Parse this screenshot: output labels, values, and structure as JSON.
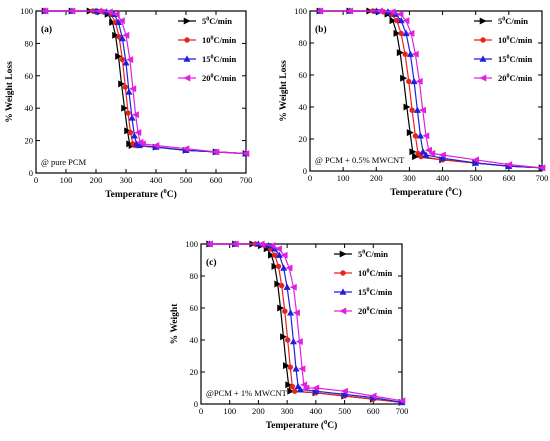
{
  "chart_data": [
    {
      "type": "line",
      "panel_label": "(a)",
      "annotation": "@ pure PCM",
      "xlabel_main": "Temperature (",
      "xlabel_sup": "0",
      "xlabel_tail": "C)",
      "ylabel": "% Weight Loss",
      "xlim": [
        0,
        700
      ],
      "ylim": [
        0,
        100
      ],
      "xticks": [
        0,
        100,
        200,
        300,
        400,
        500,
        600,
        700
      ],
      "yticks": [
        0,
        20,
        40,
        60,
        80,
        100
      ],
      "legend_position": "top-right",
      "series": [
        {
          "name": "5",
          "unit": "C/min",
          "color": "#000000",
          "marker": "triangle-right",
          "points": [
            [
              30,
              100
            ],
            [
              120,
              100
            ],
            [
              180,
              100
            ],
            [
              215,
              99.5
            ],
            [
              240,
              98
            ],
            [
              255,
              93
            ],
            [
              265,
              85
            ],
            [
              275,
              72
            ],
            [
              285,
              55
            ],
            [
              295,
              40
            ],
            [
              305,
              26
            ],
            [
              312,
              18
            ],
            [
              320,
              17
            ],
            [
              400,
              16
            ],
            [
              500,
              14
            ],
            [
              600,
              13
            ],
            [
              700,
              12
            ]
          ]
        },
        {
          "name": "10",
          "unit": "C/min",
          "color": "#e8231c",
          "marker": "circle",
          "points": [
            [
              30,
              100
            ],
            [
              120,
              100
            ],
            [
              190,
              100
            ],
            [
              225,
              99.5
            ],
            [
              250,
              98
            ],
            [
              265,
              93
            ],
            [
              277,
              84
            ],
            [
              288,
              70
            ],
            [
              298,
              53
            ],
            [
              307,
              37
            ],
            [
              315,
              25
            ],
            [
              323,
              18
            ],
            [
              330,
              17
            ],
            [
              400,
              16
            ],
            [
              500,
              14
            ],
            [
              600,
              13
            ],
            [
              700,
              12
            ]
          ]
        },
        {
          "name": "15",
          "unit": "C/min",
          "color": "#1f1fe0",
          "marker": "triangle-up",
          "points": [
            [
              30,
              100
            ],
            [
              120,
              100
            ],
            [
              200,
              100
            ],
            [
              235,
              99.5
            ],
            [
              260,
              98
            ],
            [
              275,
              93
            ],
            [
              288,
              83
            ],
            [
              300,
              68
            ],
            [
              310,
              50
            ],
            [
              320,
              34
            ],
            [
              328,
              23
            ],
            [
              335,
              18
            ],
            [
              345,
              17
            ],
            [
              400,
              16
            ],
            [
              500,
              14
            ],
            [
              600,
              13
            ],
            [
              700,
              12
            ]
          ]
        },
        {
          "name": "20",
          "unit": "C/min",
          "color": "#e020e0",
          "marker": "triangle-left",
          "points": [
            [
              30,
              100
            ],
            [
              120,
              100
            ],
            [
              210,
              100
            ],
            [
              245,
              99.5
            ],
            [
              268,
              98
            ],
            [
              285,
              94
            ],
            [
              300,
              85
            ],
            [
              313,
              70
            ],
            [
              323,
              52
            ],
            [
              332,
              36
            ],
            [
              340,
              25
            ],
            [
              347,
              19
            ],
            [
              355,
              18
            ],
            [
              400,
              17
            ],
            [
              500,
              15
            ],
            [
              600,
              13
            ],
            [
              700,
              12
            ]
          ]
        }
      ]
    },
    {
      "type": "line",
      "panel_label": "(b)",
      "annotation": "@ PCM + 0.5% MWCNT",
      "xlabel_main": "Temperature (",
      "xlabel_sup": "0",
      "xlabel_tail": "C)",
      "ylabel": "% Weight Loss",
      "xlim": [
        0,
        700
      ],
      "ylim": [
        0,
        100
      ],
      "xticks": [
        0,
        100,
        200,
        300,
        400,
        500,
        600,
        700
      ],
      "yticks": [
        0,
        20,
        40,
        60,
        80,
        100
      ],
      "legend_position": "top-right",
      "series": [
        {
          "name": "5",
          "unit": "C/min",
          "color": "#000000",
          "marker": "triangle-right",
          "points": [
            [
              30,
              100
            ],
            [
              120,
              100
            ],
            [
              180,
              100
            ],
            [
              210,
              99.5
            ],
            [
              235,
              98
            ],
            [
              250,
              94
            ],
            [
              262,
              86
            ],
            [
              272,
              74
            ],
            [
              282,
              58
            ],
            [
              292,
              40
            ],
            [
              302,
              24
            ],
            [
              310,
              12
            ],
            [
              318,
              9
            ],
            [
              400,
              7
            ],
            [
              500,
              5
            ],
            [
              600,
              3
            ],
            [
              700,
              2
            ]
          ]
        },
        {
          "name": "10",
          "unit": "C/min",
          "color": "#e8231c",
          "marker": "circle",
          "points": [
            [
              30,
              100
            ],
            [
              120,
              100
            ],
            [
              190,
              100
            ],
            [
              222,
              99.5
            ],
            [
              246,
              98
            ],
            [
              262,
              94
            ],
            [
              275,
              86
            ],
            [
              287,
              73
            ],
            [
              298,
              56
            ],
            [
              308,
              38
            ],
            [
              318,
              22
            ],
            [
              326,
              11
            ],
            [
              335,
              9
            ],
            [
              400,
              7
            ],
            [
              500,
              5
            ],
            [
              600,
              3
            ],
            [
              700,
              2
            ]
          ]
        },
        {
          "name": "15",
          "unit": "C/min",
          "color": "#1f1fe0",
          "marker": "triangle-up",
          "points": [
            [
              30,
              100
            ],
            [
              120,
              100
            ],
            [
              200,
              100
            ],
            [
              235,
              99.5
            ],
            [
              258,
              98
            ],
            [
              275,
              94
            ],
            [
              290,
              86
            ],
            [
              303,
              73
            ],
            [
              314,
              56
            ],
            [
              324,
              38
            ],
            [
              333,
              22
            ],
            [
              341,
              12
            ],
            [
              350,
              10
            ],
            [
              400,
              8
            ],
            [
              500,
              5
            ],
            [
              600,
              3
            ],
            [
              700,
              2
            ]
          ]
        },
        {
          "name": "20",
          "unit": "C/min",
          "color": "#e020e0",
          "marker": "triangle-left",
          "points": [
            [
              30,
              100
            ],
            [
              120,
              100
            ],
            [
              210,
              100
            ],
            [
              248,
              99.5
            ],
            [
              272,
              98
            ],
            [
              290,
              94
            ],
            [
              305,
              86
            ],
            [
              318,
              73
            ],
            [
              330,
              56
            ],
            [
              340,
              38
            ],
            [
              350,
              22
            ],
            [
              358,
              13
            ],
            [
              368,
              11
            ],
            [
              400,
              10
            ],
            [
              500,
              7
            ],
            [
              600,
              4
            ],
            [
              700,
              2
            ]
          ]
        }
      ]
    },
    {
      "type": "line",
      "panel_label": "(c)",
      "annotation": "@PCM + 1% MWCNT",
      "xlabel_main": "Temperature (",
      "xlabel_sup": "0",
      "xlabel_tail": "C)",
      "ylabel": "% Weight",
      "xlim": [
        0,
        700
      ],
      "ylim": [
        0,
        100
      ],
      "xticks": [
        0,
        100,
        200,
        300,
        400,
        500,
        600,
        700
      ],
      "yticks": [
        0,
        20,
        40,
        60,
        80,
        100
      ],
      "legend_position": "top-right",
      "series": [
        {
          "name": "5",
          "unit": "C/min",
          "color": "#000000",
          "marker": "triangle-right",
          "points": [
            [
              30,
              100
            ],
            [
              120,
              100
            ],
            [
              180,
              100
            ],
            [
              210,
              99
            ],
            [
              230,
              97
            ],
            [
              245,
              93
            ],
            [
              257,
              86
            ],
            [
              267,
              75
            ],
            [
              277,
              60
            ],
            [
              287,
              42
            ],
            [
              297,
              24
            ],
            [
              305,
              12
            ],
            [
              312,
              8
            ],
            [
              400,
              7
            ],
            [
              500,
              5
            ],
            [
              600,
              3
            ],
            [
              700,
              1
            ]
          ]
        },
        {
          "name": "10",
          "unit": "C/min",
          "color": "#e8231c",
          "marker": "circle",
          "points": [
            [
              30,
              100
            ],
            [
              120,
              100
            ],
            [
              190,
              100
            ],
            [
              222,
              99
            ],
            [
              242,
              97
            ],
            [
              257,
              93
            ],
            [
              270,
              86
            ],
            [
              281,
              74
            ],
            [
              292,
              58
            ],
            [
              302,
              40
            ],
            [
              311,
              23
            ],
            [
              318,
              11
            ],
            [
              326,
              8
            ],
            [
              400,
              7
            ],
            [
              500,
              5
            ],
            [
              600,
              3
            ],
            [
              700,
              1
            ]
          ]
        },
        {
          "name": "15",
          "unit": "C/min",
          "color": "#1f1fe0",
          "marker": "triangle-up",
          "points": [
            [
              30,
              100
            ],
            [
              120,
              100
            ],
            [
              200,
              100
            ],
            [
              235,
              99
            ],
            [
              256,
              97
            ],
            [
              273,
              93
            ],
            [
              288,
              85
            ],
            [
              300,
              73
            ],
            [
              312,
              57
            ],
            [
              322,
              39
            ],
            [
              331,
              22
            ],
            [
              338,
              11
            ],
            [
              346,
              9
            ],
            [
              400,
              8
            ],
            [
              500,
              6
            ],
            [
              600,
              4
            ],
            [
              700,
              1
            ]
          ]
        },
        {
          "name": "20",
          "unit": "C/min",
          "color": "#e020e0",
          "marker": "triangle-left",
          "points": [
            [
              30,
              100
            ],
            [
              120,
              100
            ],
            [
              210,
              100
            ],
            [
              248,
              99
            ],
            [
              270,
              97
            ],
            [
              290,
              93
            ],
            [
              307,
              85
            ],
            [
              322,
              73
            ],
            [
              333,
              57
            ],
            [
              343,
              39
            ],
            [
              352,
              22
            ],
            [
              358,
              12
            ],
            [
              366,
              10
            ],
            [
              400,
              10
            ],
            [
              500,
              8
            ],
            [
              600,
              5
            ],
            [
              700,
              2
            ]
          ]
        }
      ]
    }
  ]
}
